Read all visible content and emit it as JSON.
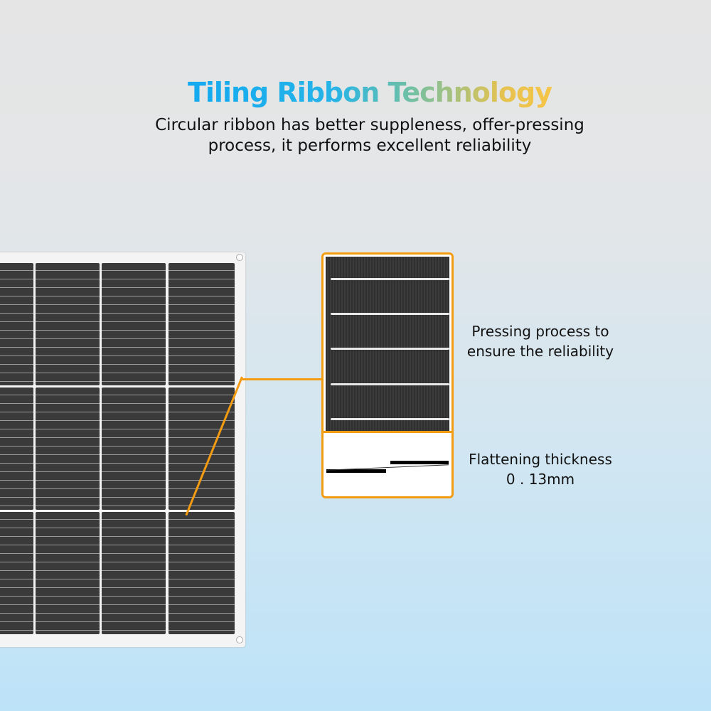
{
  "header": {
    "title": "Tiling Ribbon Technology",
    "subtitle_line1": "Circular ribbon has better suppleness, offer-pressing",
    "subtitle_line2": "process, it performs excellent reliability"
  },
  "callouts": {
    "pressing_line1": "Pressing process to",
    "pressing_line2": "ensure the reliability",
    "thickness_line1": "Flattening thickness",
    "thickness_line2": "0 . 13mm"
  },
  "colors": {
    "accent_orange": "#f39c12",
    "title_blue": "#13a9f0",
    "title_yellow": "#fec640"
  }
}
